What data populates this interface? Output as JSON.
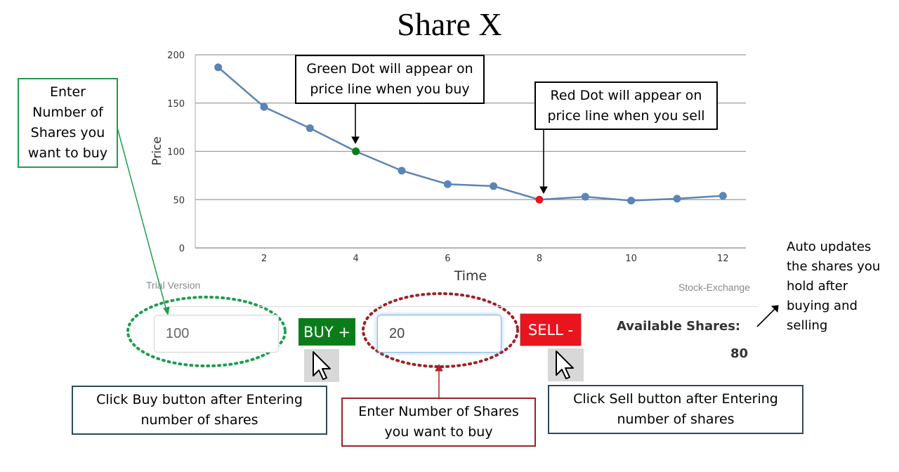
{
  "title": "Share X",
  "chart_data": {
    "type": "line",
    "x": [
      1,
      2,
      3,
      4,
      5,
      6,
      7,
      8,
      9,
      10,
      11,
      12
    ],
    "y": [
      187,
      146,
      124,
      100,
      80,
      66,
      64,
      50,
      53,
      49,
      51,
      54
    ],
    "xticks": [
      2,
      4,
      6,
      8,
      10,
      12
    ],
    "yticks": [
      0,
      50,
      100,
      150,
      200
    ],
    "xlabel": "Time",
    "ylabel": "Price",
    "ylim": [
      0,
      200
    ],
    "xlim": [
      0.5,
      12.5
    ],
    "grid": "horizontal",
    "line_color": "#5b84b7",
    "buy_marker": {
      "x": 4,
      "color": "#0a7d1a"
    },
    "sell_marker": {
      "x": 8,
      "color": "#e8141e"
    }
  },
  "watermark_left": "Trial Version",
  "watermark_right": "Stock-Exchange",
  "buy_input": {
    "value": "100"
  },
  "buy_button": {
    "label": "BUY +",
    "color": "#0a7d1a"
  },
  "sell_input": {
    "value": "20"
  },
  "sell_button": {
    "label": "SELL -",
    "color": "#e8141e"
  },
  "available": {
    "label": "Available Shares:",
    "value": "80"
  },
  "callouts": {
    "green_dot": "Green Dot will appear on price line when you buy",
    "red_dot": "Red Dot will appear on price line when you sell",
    "enter_buy_left": "Enter Number of Shares you want to buy",
    "click_buy": "Click Buy button after Entering number of shares",
    "enter_sell_mid": "Enter Number of Shares you want to buy",
    "click_sell": "Click Sell button after Entering number of shares",
    "auto_updates": "Auto updates the shares you hold after buying and selling"
  }
}
